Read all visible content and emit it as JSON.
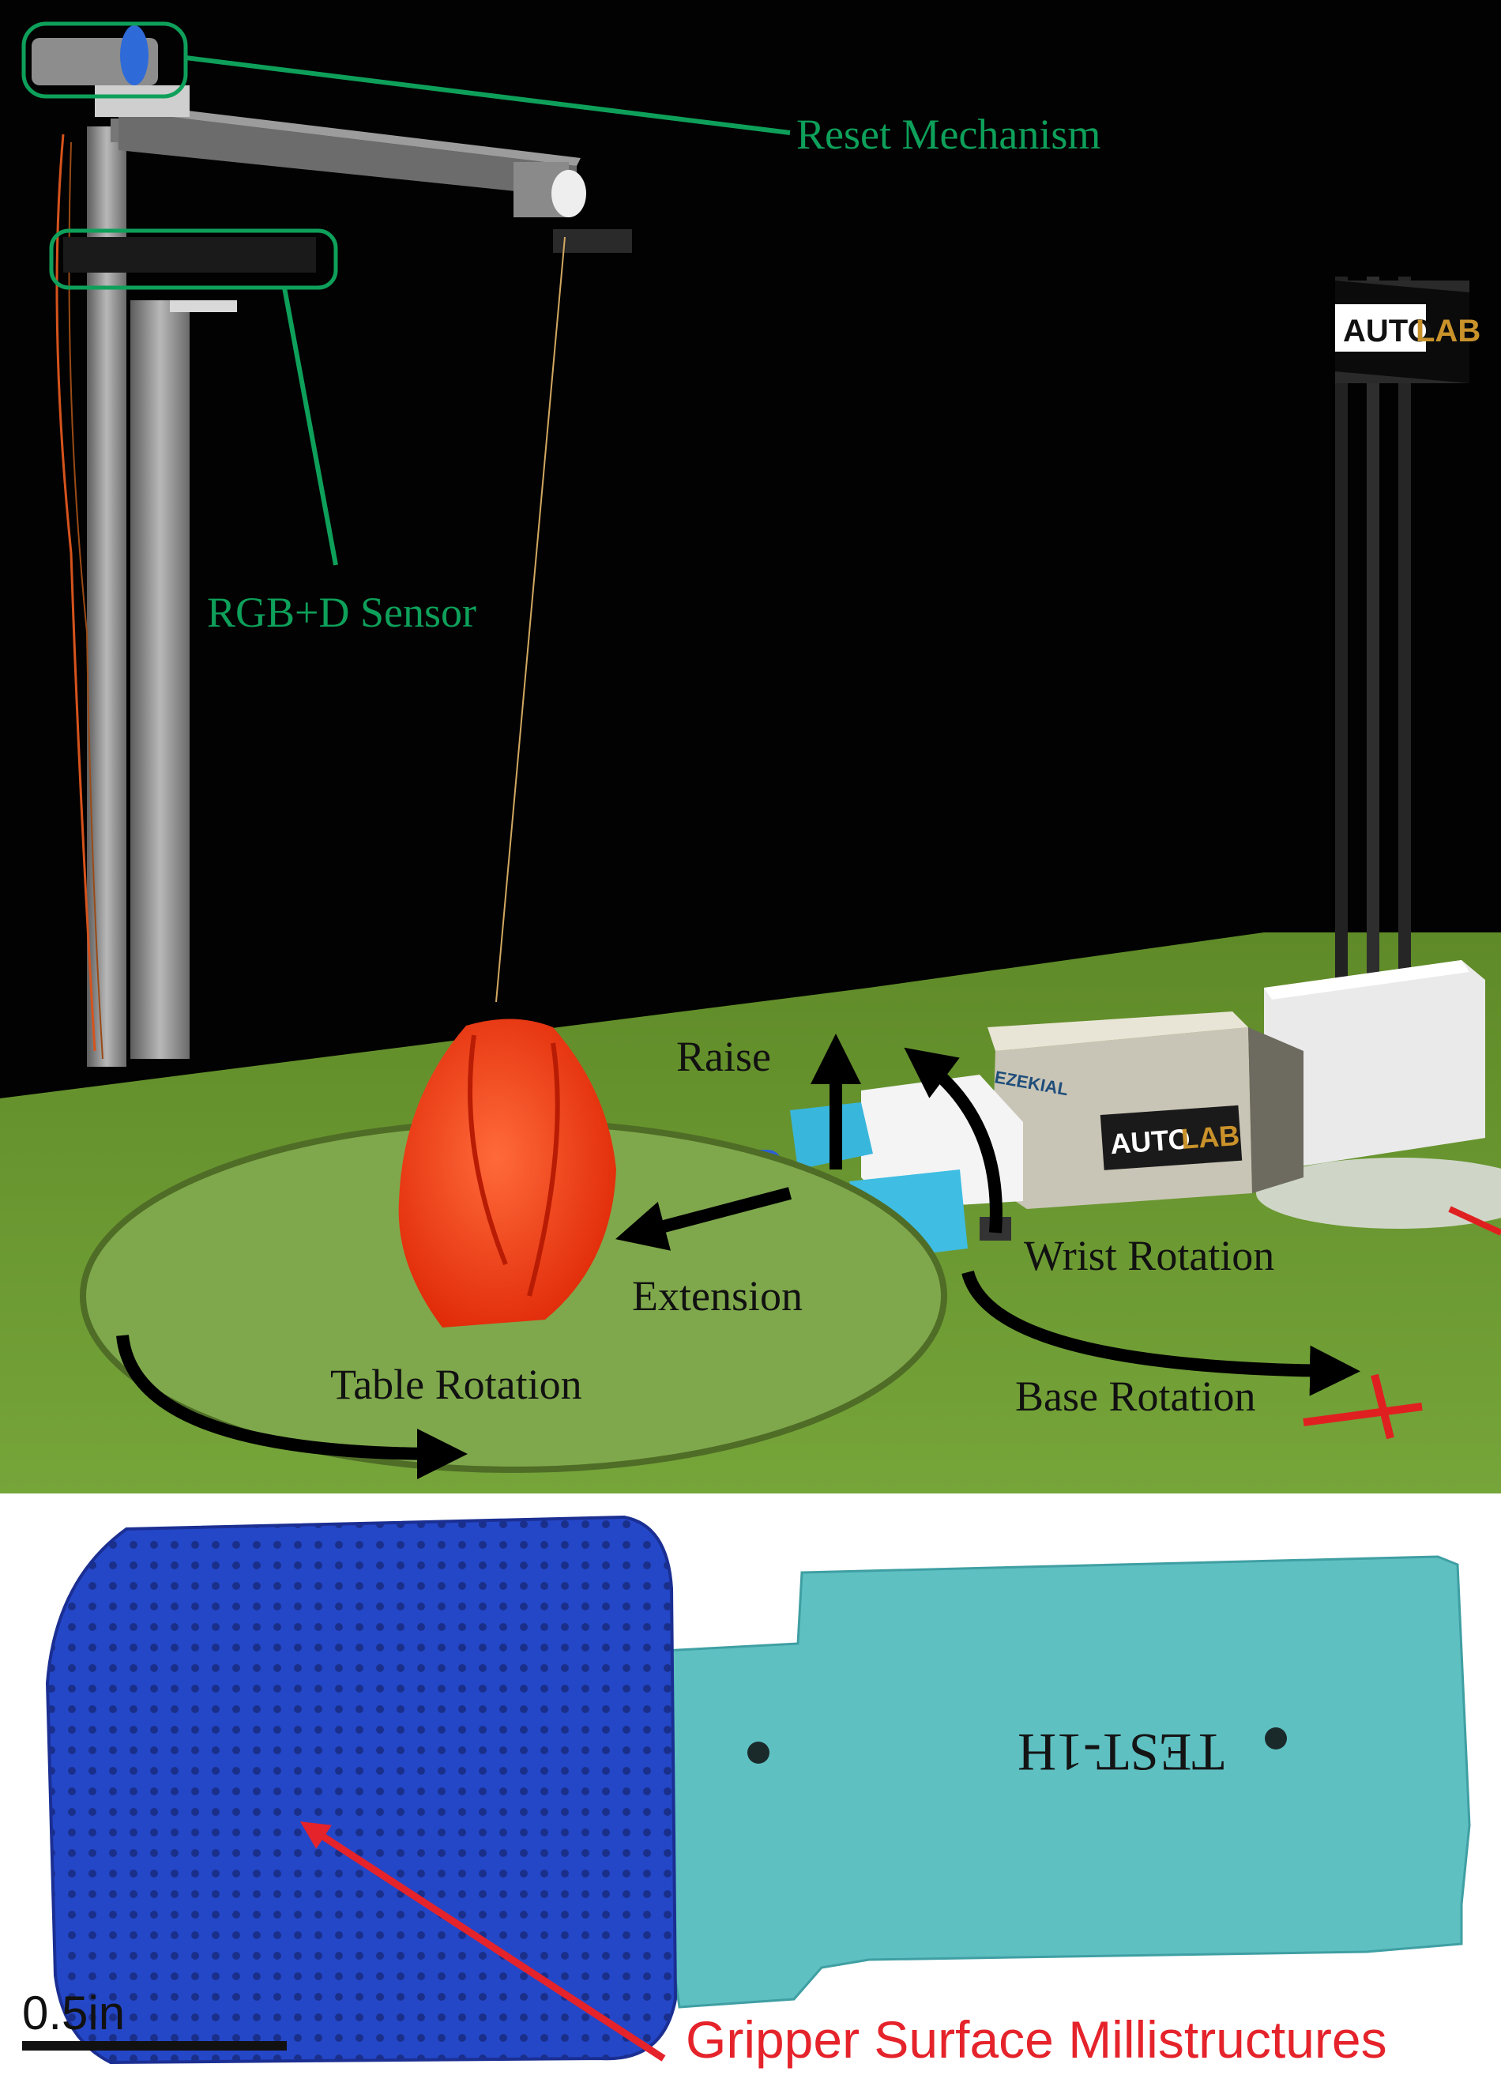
{
  "panel_top": {
    "labels": {
      "reset_mechanism": "Reset Mechanism",
      "rgbd_sensor": "RGB+D Sensor",
      "raise": "Raise",
      "extension": "Extension",
      "wrist_rotation": "Wrist Rotation",
      "table_rotation": "Table Rotation",
      "base_rotation": "Base Rotation"
    },
    "logos": {
      "tower": {
        "part1": "AUTO",
        "part2": "LAB"
      },
      "arm": {
        "part1": "AUTO",
        "part2": "LAB"
      },
      "arm_side": "EZEKIAL"
    },
    "colors": {
      "background": "#020202",
      "table": "#6b9a2f",
      "object": "#ff3b12",
      "callout": "#0ea05a",
      "gripper": "#39b6dc",
      "arrow": "#000000"
    }
  },
  "panel_bottom": {
    "label": "Gripper Surface Millistructures",
    "scale_bar": "0.5in",
    "handwriting": "TEST-1H",
    "colors": {
      "pad": "#2447c8",
      "tab": "#5fc0c2",
      "arrow": "#e5232b"
    }
  }
}
